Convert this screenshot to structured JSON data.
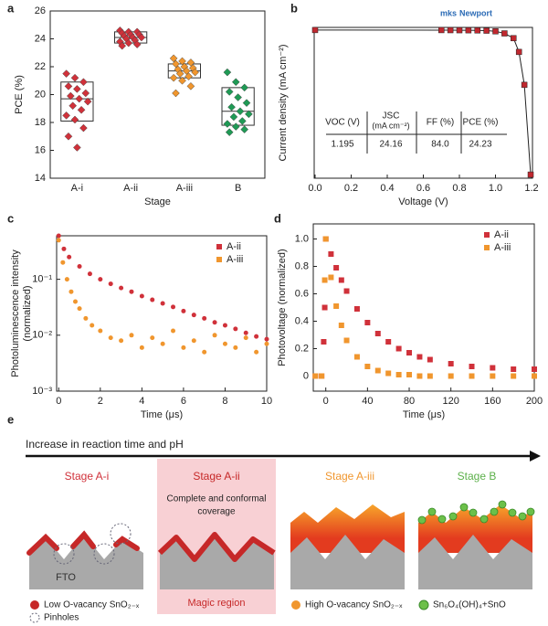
{
  "chart_data": [
    {
      "panel": "a",
      "type": "box",
      "xlabel": "Stage",
      "ylabel": "PCE (%)",
      "categories": [
        "A-i",
        "A-ii",
        "A-iii",
        "B"
      ],
      "ylim": [
        14,
        26
      ],
      "yticks": [
        14,
        16,
        18,
        20,
        22,
        24,
        26
      ],
      "boxes": [
        {
          "color": "#d0313a",
          "q1": 18.1,
          "median": 19.7,
          "q3": 20.9,
          "points": [
            21.5,
            21.2,
            20.9,
            20.6,
            20.4,
            20.1,
            19.9,
            19.7,
            19.5,
            19.2,
            18.9,
            18.5,
            18.2,
            17.6,
            17.0,
            16.2
          ]
        },
        {
          "color": "#d0313a",
          "q1": 23.7,
          "median": 24.1,
          "q3": 24.5,
          "points": [
            24.6,
            24.5,
            24.5,
            24.4,
            24.3,
            24.3,
            24.2,
            24.1,
            24.1,
            24.0,
            23.9,
            23.8,
            23.7,
            23.6,
            23.5
          ]
        },
        {
          "color": "#f0962e",
          "q1": 21.2,
          "median": 21.7,
          "q3": 22.2,
          "points": [
            22.6,
            22.4,
            22.3,
            22.2,
            22.0,
            21.9,
            21.8,
            21.7,
            21.6,
            21.5,
            21.3,
            21.2,
            21.0,
            20.6,
            20.1
          ]
        },
        {
          "color": "#1f9a55",
          "q1": 17.8,
          "median": 18.8,
          "q3": 20.5,
          "points": [
            21.6,
            20.9,
            20.5,
            20.2,
            19.8,
            19.4,
            19.1,
            18.8,
            18.6,
            18.4,
            18.1,
            17.9,
            17.7,
            17.5,
            17.3
          ]
        }
      ]
    },
    {
      "panel": "b",
      "type": "line",
      "xlabel": "Voltage (V)",
      "ylabel": "Current density (mA cm⁻²)",
      "color": "#c0282f",
      "logo": [
        "mks",
        "Newport"
      ],
      "x": [
        0,
        0.7,
        0.75,
        0.8,
        0.85,
        0.9,
        0.95,
        1.0,
        1.05,
        1.1,
        1.13,
        1.16,
        1.195
      ],
      "values": [
        24.16,
        24.15,
        24.14,
        24.13,
        24.12,
        24.1,
        24.06,
        23.95,
        23.6,
        22.8,
        20.5,
        15.0,
        0
      ],
      "xlim": [
        -0.005,
        1.205
      ],
      "xticks": [
        {
          "value": 0,
          "label": "0.0"
        },
        0.2,
        0.4,
        0.6,
        0.8,
        {
          "value": 1,
          "label": "1.0"
        },
        1.2
      ],
      "ylim": [
        -0.6,
        24.6
      ],
      "table": {
        "headers": [
          [
            "VOC (V)"
          ],
          [
            "JSC",
            "(mA cm⁻²)"
          ],
          [
            "FF (%)"
          ],
          [
            "PCE (%)"
          ]
        ],
        "rows": [
          [
            "1.195",
            "24.16",
            "84.0",
            "24.23"
          ]
        ]
      }
    },
    {
      "panel": "c",
      "type": "scatter",
      "marker": "circle",
      "yscale": "log",
      "legend": "upper right",
      "xlabel": "Time (μs)",
      "ylabel": [
        "Photoluminescence intensity",
        "(normalized)"
      ],
      "xlim": [
        -0.1,
        10
      ],
      "xticks": [
        0,
        2,
        4,
        6,
        8,
        10
      ],
      "ylim": [
        0.001,
        0.6
      ],
      "yticks": [
        {
          "value": 0.001,
          "label": "10⁻³"
        },
        {
          "value": 0.01,
          "label": "10⁻²"
        },
        {
          "value": 0.1,
          "label": "10⁻¹"
        }
      ],
      "series": [
        {
          "name": "A-ii",
          "color": "#d0313a",
          "x": [
            0,
            0.25,
            0.5,
            1,
            1.5,
            2,
            2.5,
            3,
            3.5,
            4,
            4.5,
            5,
            5.5,
            6,
            6.5,
            7,
            7.5,
            8,
            8.5,
            9,
            9.5,
            10
          ],
          "values": [
            0.6,
            0.35,
            0.25,
            0.17,
            0.125,
            0.1,
            0.083,
            0.07,
            0.06,
            0.05,
            0.043,
            0.037,
            0.032,
            0.027,
            0.023,
            0.02,
            0.017,
            0.015,
            0.013,
            0.011,
            0.0095,
            0.0085
          ]
        },
        {
          "name": "A-iii",
          "color": "#f0962e",
          "x": [
            0,
            0.2,
            0.4,
            0.6,
            0.8,
            1,
            1.3,
            1.6,
            2,
            2.5,
            3,
            3.5,
            4,
            4.5,
            5,
            5.5,
            6,
            6.5,
            7,
            7.5,
            8,
            8.5,
            9,
            9.5,
            10
          ],
          "values": [
            0.5,
            0.2,
            0.1,
            0.06,
            0.04,
            0.03,
            0.02,
            0.015,
            0.012,
            0.009,
            0.008,
            0.01,
            0.006,
            0.009,
            0.007,
            0.012,
            0.006,
            0.008,
            0.005,
            0.01,
            0.007,
            0.006,
            0.009,
            0.005,
            0.007
          ]
        }
      ]
    },
    {
      "panel": "d",
      "type": "scatter",
      "marker": "square",
      "legend": "upper right",
      "xlabel": "Time (μs)",
      "ylabel": "Photovoltage (normalized)",
      "xlim": [
        -12,
        200
      ],
      "xticks": [
        0,
        40,
        80,
        120,
        160,
        200
      ],
      "ylim": [
        -0.11,
        1.11
      ],
      "yticks": [
        0,
        0.2,
        0.4,
        0.6,
        0.8,
        {
          "value": 1,
          "label": "1.0"
        }
      ],
      "series": [
        {
          "name": "A-ii",
          "color": "#d0313a",
          "x": [
            -10,
            -4,
            -2,
            -1,
            0,
            5,
            10,
            15,
            20,
            30,
            40,
            50,
            60,
            70,
            80,
            90,
            100,
            120,
            140,
            160,
            180,
            200
          ],
          "values": [
            0,
            0,
            0.25,
            0.5,
            1.0,
            0.89,
            0.79,
            0.7,
            0.62,
            0.49,
            0.39,
            0.31,
            0.25,
            0.2,
            0.17,
            0.14,
            0.12,
            0.09,
            0.07,
            0.06,
            0.05,
            0.05
          ]
        },
        {
          "name": "A-iii",
          "color": "#f0962e",
          "x": [
            -10,
            -4,
            -1,
            0,
            5,
            10,
            15,
            20,
            30,
            40,
            50,
            60,
            70,
            80,
            90,
            100,
            120,
            140,
            160,
            180,
            200
          ],
          "values": [
            0,
            0,
            0.7,
            1.0,
            0.72,
            0.51,
            0.37,
            0.26,
            0.14,
            0.07,
            0.04,
            0.02,
            0.01,
            0.01,
            0,
            0,
            0,
            0,
            0,
            0,
            0
          ]
        }
      ]
    }
  ],
  "diagram": {
    "panel": "e",
    "arrow_label": "Increase in reaction time and pH",
    "stages": [
      "Stage A-i",
      "Stage A-ii",
      "Stage A-iii",
      "Stage B"
    ],
    "note": [
      "Complete and conformal",
      "coverage"
    ],
    "substrate": "FTO",
    "highlight": "Magic region",
    "legend": [
      "Low O-vacancy SnO₂₋ₓ",
      "Pinholes",
      "High O-vacancy SnO₂₋ₓ",
      "Sn₆O₄(OH)₄+SnO"
    ]
  }
}
